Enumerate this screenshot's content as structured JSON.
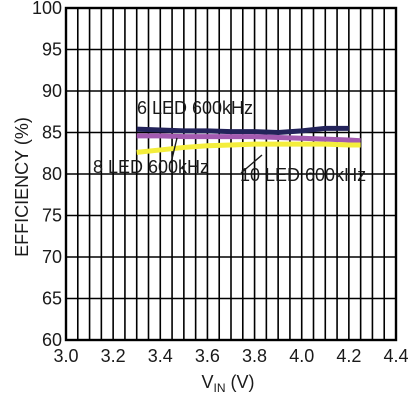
{
  "chart_data": {
    "type": "line",
    "xlabel_main": "V",
    "xlabel_sub": "IN",
    "xlabel_unit": " (V)",
    "ylabel": "EFFICIENCY (%)",
    "xlim": [
      3.0,
      4.4
    ],
    "ylim": [
      60,
      100
    ],
    "x_ticks": [
      "3.0",
      "3.2",
      "3.4",
      "3.6",
      "3.8",
      "4.0",
      "4.2",
      "4.4"
    ],
    "y_ticks": [
      "60",
      "65",
      "70",
      "75",
      "80",
      "85",
      "90",
      "95",
      "100"
    ],
    "grid": true,
    "series": [
      {
        "name": "6 LED 600kHz",
        "color": "#23235a",
        "x": [
          3.3,
          3.4,
          3.5,
          3.6,
          3.7,
          3.8,
          3.9,
          4.0,
          4.1,
          4.2
        ],
        "y": [
          85.4,
          85.3,
          85.2,
          85.2,
          85.1,
          85.1,
          85.0,
          85.2,
          85.5,
          85.5
        ]
      },
      {
        "name": "8 LED 600kHz",
        "color": "#a35ab0",
        "x": [
          3.3,
          3.4,
          3.5,
          3.6,
          3.7,
          3.8,
          3.9,
          4.0,
          4.1,
          4.2,
          4.25
        ],
        "y": [
          84.6,
          84.6,
          84.5,
          84.5,
          84.5,
          84.5,
          84.4,
          84.3,
          84.2,
          84.1,
          84.0
        ]
      },
      {
        "name": "10 LED 600kHz",
        "color": "#f4ee3c",
        "x": [
          3.3,
          3.4,
          3.5,
          3.6,
          3.7,
          3.8,
          3.9,
          4.0,
          4.1,
          4.2,
          4.25
        ],
        "y": [
          82.6,
          82.9,
          83.2,
          83.4,
          83.5,
          83.6,
          83.6,
          83.6,
          83.6,
          83.5,
          83.5
        ]
      }
    ],
    "annotations": [
      {
        "text": "6 LED 600kHz",
        "series": 0
      },
      {
        "text": "8 LED 600kHz",
        "series": 1
      },
      {
        "text": "10 LED 600kHz",
        "series": 2
      }
    ]
  }
}
